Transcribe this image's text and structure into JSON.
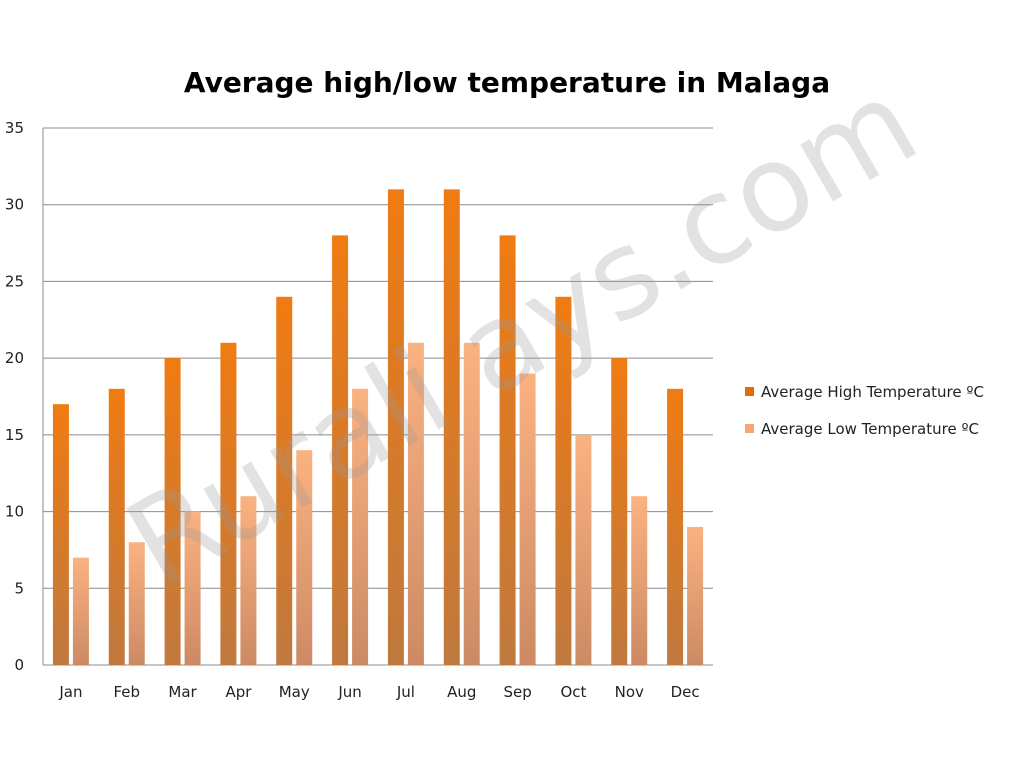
{
  "chart_data": {
    "type": "bar",
    "title": "Average high/low temperature in Malaga",
    "xlabel": "",
    "ylabel": "",
    "ylim": [
      0,
      35
    ],
    "yticks": [
      0,
      5,
      10,
      15,
      20,
      25,
      30,
      35
    ],
    "grid": true,
    "legend_position": "right",
    "categories": [
      "Jan",
      "Feb",
      "Mar",
      "Apr",
      "May",
      "Jun",
      "Jul",
      "Aug",
      "Sep",
      "Oct",
      "Nov",
      "Dec"
    ],
    "series": [
      {
        "name": "Average High Temperature ºC",
        "values": [
          17,
          18,
          20,
          21,
          24,
          28,
          31,
          31,
          28,
          24,
          20,
          18
        ],
        "color": "#e36c09"
      },
      {
        "name": "Average Low Temperature ºC",
        "values": [
          7,
          8,
          10,
          11,
          14,
          18,
          21,
          21,
          19,
          15,
          11,
          9
        ],
        "color": "#f9a66c"
      }
    ],
    "watermark": "Rurali ays.com"
  }
}
